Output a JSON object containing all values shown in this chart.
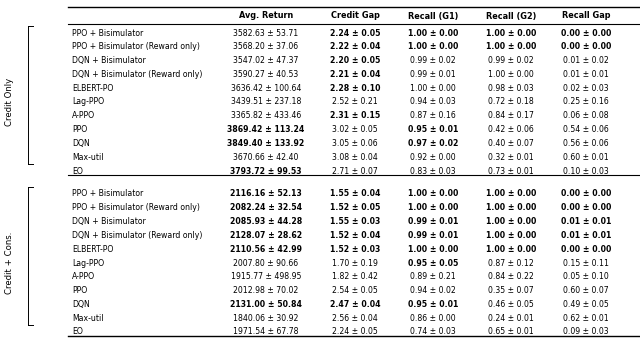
{
  "header": [
    "",
    "Avg. Return",
    "Credit Gap",
    "Recall (G1)",
    "Recall (G2)",
    "Recall Gap"
  ],
  "section1_label": "Credit Only",
  "section2_label": "Credit + Cons.",
  "section1": [
    [
      "PPO + Bisimulator",
      "3582.63 ± 53.71",
      "2.24 ± 0.05",
      "1.00 ± 0.00",
      "1.00 ± 0.00",
      "0.00 ± 0.00"
    ],
    [
      "PPO + Bisimulator (Reward only)",
      "3568.20 ± 37.06",
      "2.22 ± 0.04",
      "1.00 ± 0.00",
      "1.00 ± 0.00",
      "0.00 ± 0.00"
    ],
    [
      "DQN + Bisimulator",
      "3547.02 ± 47.37",
      "2.20 ± 0.05",
      "0.99 ± 0.02",
      "0.99 ± 0.02",
      "0.01 ± 0.02"
    ],
    [
      "DQN + Bisimulator (Reward only)",
      "3590.27 ± 40.53",
      "2.21 ± 0.04",
      "0.99 ± 0.01",
      "1.00 ± 0.00",
      "0.01 ± 0.01"
    ],
    [
      "ELBERT-PO",
      "3636.42 ± 100.64",
      "2.28 ± 0.10",
      "1.00 ± 0.00",
      "0.98 ± 0.03",
      "0.02 ± 0.03"
    ],
    [
      "Lag-PPO",
      "3439.51 ± 237.18",
      "2.52 ± 0.21",
      "0.94 ± 0.03",
      "0.72 ± 0.18",
      "0.25 ± 0.16"
    ],
    [
      "A-PPO",
      "3365.82 ± 433.46",
      "2.31 ± 0.15",
      "0.87 ± 0.16",
      "0.84 ± 0.17",
      "0.06 ± 0.08"
    ],
    [
      "PPO",
      "3869.42 ± 113.24",
      "3.02 ± 0.05",
      "0.95 ± 0.01",
      "0.42 ± 0.06",
      "0.54 ± 0.06"
    ],
    [
      "DQN",
      "3849.40 ± 133.92",
      "3.05 ± 0.06",
      "0.97 ± 0.02",
      "0.40 ± 0.07",
      "0.56 ± 0.06"
    ],
    [
      "Max-util",
      "3670.66 ± 42.40",
      "3.08 ± 0.04",
      "0.92 ± 0.00",
      "0.32 ± 0.01",
      "0.60 ± 0.01"
    ],
    [
      "EO",
      "3793.72 ± 99.53",
      "2.71 ± 0.07",
      "0.83 ± 0.03",
      "0.73 ± 0.01",
      "0.10 ± 0.03"
    ]
  ],
  "section2": [
    [
      "PPO + Bisimulator",
      "2116.16 ± 52.13",
      "1.55 ± 0.04",
      "1.00 ± 0.00",
      "1.00 ± 0.00",
      "0.00 ± 0.00"
    ],
    [
      "PPO + Bisimulator (Reward only)",
      "2082.24 ± 32.54",
      "1.52 ± 0.05",
      "1.00 ± 0.00",
      "1.00 ± 0.00",
      "0.00 ± 0.00"
    ],
    [
      "DQN + Bisimulator",
      "2085.93 ± 44.28",
      "1.55 ± 0.03",
      "0.99 ± 0.01",
      "1.00 ± 0.00",
      "0.01 ± 0.01"
    ],
    [
      "DQN + Bisimulator (Reward only)",
      "2128.07 ± 28.62",
      "1.52 ± 0.04",
      "0.99 ± 0.01",
      "1.00 ± 0.00",
      "0.01 ± 0.01"
    ],
    [
      "ELBERT-PO",
      "2110.56 ± 42.99",
      "1.52 ± 0.03",
      "1.00 ± 0.00",
      "1.00 ± 0.00",
      "0.00 ± 0.00"
    ],
    [
      "Lag-PPO",
      "2007.80 ± 90.66",
      "1.70 ± 0.19",
      "0.95 ± 0.05",
      "0.87 ± 0.12",
      "0.15 ± 0.11"
    ],
    [
      "A-PPO",
      "1915.77 ± 498.95",
      "1.82 ± 0.42",
      "0.89 ± 0.21",
      "0.84 ± 0.22",
      "0.05 ± 0.10"
    ],
    [
      "PPO",
      "2012.98 ± 70.02",
      "2.54 ± 0.05",
      "0.94 ± 0.02",
      "0.35 ± 0.07",
      "0.60 ± 0.07"
    ],
    [
      "DQN",
      "2131.00 ± 50.84",
      "2.47 ± 0.04",
      "0.95 ± 0.01",
      "0.46 ± 0.05",
      "0.49 ± 0.05"
    ],
    [
      "Max-util",
      "1840.06 ± 30.92",
      "2.56 ± 0.04",
      "0.86 ± 0.00",
      "0.24 ± 0.01",
      "0.62 ± 0.01"
    ],
    [
      "EO",
      "1971.54 ± 67.78",
      "2.24 ± 0.05",
      "0.74 ± 0.03",
      "0.65 ± 0.01",
      "0.09 ± 0.03"
    ]
  ],
  "bold_s1": {
    "0": [
      2,
      3,
      4,
      5
    ],
    "1": [
      2,
      3,
      4,
      5
    ],
    "2": [
      2
    ],
    "3": [
      2
    ],
    "4": [
      2
    ],
    "5": [],
    "6": [
      2
    ],
    "7": [
      1,
      3
    ],
    "8": [
      1,
      3
    ],
    "9": [],
    "10": [
      1
    ]
  },
  "bold_s2": {
    "0": [
      1,
      2,
      3,
      4,
      5
    ],
    "1": [
      1,
      2,
      3,
      4,
      5
    ],
    "2": [
      1,
      2,
      3,
      4,
      5
    ],
    "3": [
      1,
      2,
      3,
      4,
      5
    ],
    "4": [
      1,
      2,
      3,
      4,
      5
    ],
    "5": [
      3
    ],
    "6": [],
    "7": [],
    "8": [
      1,
      2,
      3
    ],
    "9": [],
    "10": []
  }
}
